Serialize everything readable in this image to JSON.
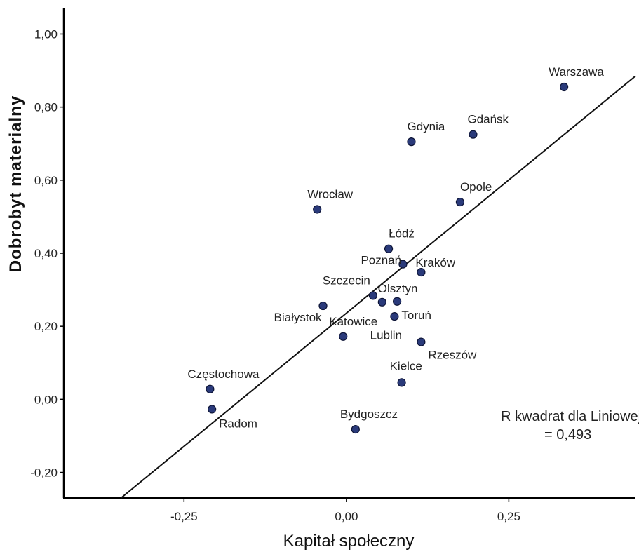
{
  "chart_data": {
    "type": "scatter",
    "xlabel": "Kapitał społeczny",
    "ylabel": "Dobrobyt materialny",
    "xlim": [
      -0.435,
      0.445
    ],
    "ylim": [
      -0.27,
      1.07
    ],
    "xticks": [
      -0.25,
      0.0,
      0.25
    ],
    "xtick_labels": [
      "-0,25",
      "0,00",
      "0,25"
    ],
    "yticks": [
      1.0,
      0.8,
      0.6,
      0.4,
      0.2,
      0.0,
      -0.2
    ],
    "ytick_labels": [
      "1,00",
      "0,80",
      "0,60",
      "0,40",
      "0,20",
      "0,00",
      "-0,20"
    ],
    "grid": false,
    "points": [
      {
        "label": "Warszawa",
        "x": 0.335,
        "y": 0.855
      },
      {
        "label": "Gdańsk",
        "x": 0.195,
        "y": 0.725
      },
      {
        "label": "Gdynia",
        "x": 0.1,
        "y": 0.705
      },
      {
        "label": "Opole",
        "x": 0.175,
        "y": 0.54
      },
      {
        "label": "Wrocław",
        "x": -0.045,
        "y": 0.52
      },
      {
        "label": "Łódź",
        "x": 0.065,
        "y": 0.412
      },
      {
        "label": "Poznań",
        "x": 0.087,
        "y": 0.37
      },
      {
        "label": "Kraków",
        "x": 0.115,
        "y": 0.348
      },
      {
        "label": "Szczecin",
        "x": 0.041,
        "y": 0.284
      },
      {
        "label": "Olsztyn",
        "x": 0.055,
        "y": 0.266
      },
      {
        "label": "",
        "x": 0.078,
        "y": 0.268
      },
      {
        "label": "Białystok",
        "x": -0.036,
        "y": 0.256
      },
      {
        "label": "Toruń",
        "x": 0.074,
        "y": 0.227
      },
      {
        "label": "Katowice",
        "x": -0.005,
        "y": 0.172
      },
      {
        "label": "Rzeszów",
        "x": 0.115,
        "y": 0.157
      },
      {
        "label": "Lublin",
        "x": null,
        "y": null
      },
      {
        "label": "Kielce",
        "x": 0.085,
        "y": 0.046
      },
      {
        "label": "Częstochowa",
        "x": -0.21,
        "y": 0.028
      },
      {
        "label": "Radom",
        "x": -0.207,
        "y": -0.027
      },
      {
        "label": "Bydgoszcz",
        "x": 0.014,
        "y": -0.082
      }
    ],
    "fit_line": {
      "type": "linear",
      "x": [
        -0.347,
        0.445
      ],
      "y": [
        -0.27,
        0.885
      ]
    },
    "annotation": [
      "R kwadrat dla Liniowej",
      "= 0,493"
    ],
    "colors": {
      "point": "#2a3a7a",
      "point_stroke": "#0d1436",
      "line": "#111111",
      "axis": "#000000"
    }
  }
}
